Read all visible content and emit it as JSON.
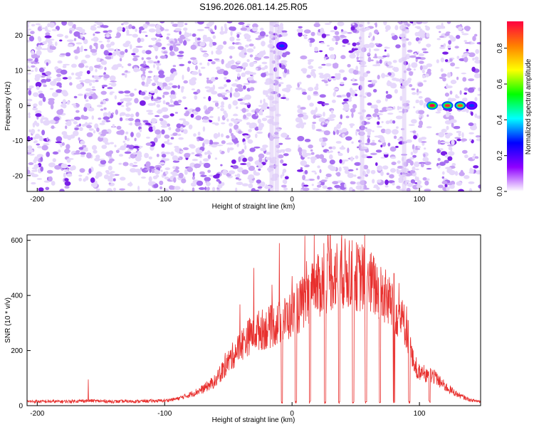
{
  "figure": {
    "title": "S196.2026.081.14.25.R05"
  },
  "chart_data": [
    {
      "type": "heatmap",
      "title": "",
      "xlabel": "Height of straight line (km)",
      "ylabel": "Frequency (Hz)",
      "xlim": [
        -208,
        148
      ],
      "ylim": [
        -24.5,
        24
      ],
      "xticks": [
        -200,
        -100,
        0,
        100
      ],
      "yticks": [
        -20,
        -10,
        0,
        10,
        20
      ],
      "colorbar": {
        "label": "Normalized spectral amplitude",
        "range": [
          0,
          0.95
        ],
        "ticks": [
          0.0,
          0.2,
          0.4,
          0.6,
          0.8
        ],
        "tick_labels": [
          "0.0",
          "0.2",
          "0.4",
          "0.6",
          "0.8"
        ],
        "colormap": [
          "#ffffff",
          "#8f00ff",
          "#0000ff",
          "#00ffff",
          "#00ff00",
          "#ffff00",
          "#ff8000",
          "#ff0040"
        ]
      },
      "noise_level": 0.12,
      "blank_bands": [
        [
          -2,
          5
        ],
        [
          108,
          114
        ],
        [
          127,
          129
        ],
        [
          138,
          140
        ]
      ],
      "features": [
        {
          "x": -8,
          "y": 17,
          "amplitude": 0.3
        },
        {
          "x": 110,
          "y": 0,
          "amplitude": 0.95
        },
        {
          "x": 122,
          "y": 0,
          "amplitude": 0.9
        },
        {
          "x": 132,
          "y": 0,
          "amplitude": 0.85
        },
        {
          "x": 141,
          "y": 0,
          "amplitude": 0.3
        }
      ]
    },
    {
      "type": "line",
      "title": "",
      "xlabel": "Height of straight line (km)",
      "ylabel": "SNR (10 * v/v)",
      "xlim": [
        -208,
        148
      ],
      "ylim": [
        0,
        620
      ],
      "xticks": [
        -200,
        -100,
        0,
        100
      ],
      "yticks": [
        0,
        200,
        400,
        600
      ],
      "grid": false,
      "series": [
        {
          "color": "#e8302e",
          "x": [
            -208,
            -180,
            -160,
            -140,
            -120,
            -100,
            -90,
            -80,
            -70,
            -60,
            -50,
            -40,
            -30,
            -20,
            -10,
            0,
            10,
            20,
            30,
            40,
            50,
            60,
            70,
            80,
            90,
            95,
            100,
            110,
            120,
            130,
            140,
            148
          ],
          "y": [
            15,
            15,
            18,
            15,
            16,
            18,
            25,
            40,
            60,
            90,
            160,
            220,
            270,
            280,
            300,
            330,
            380,
            430,
            470,
            480,
            470,
            450,
            410,
            360,
            280,
            160,
            120,
            110,
            70,
            40,
            20,
            15
          ],
          "spikes": [
            {
              "x": -160,
              "y": 95
            },
            {
              "x": -30,
              "y": 500
            },
            {
              "x": -10,
              "y": 590
            },
            {
              "x": 0,
              "y": 470
            },
            {
              "x": 25,
              "y": 590
            },
            {
              "x": 30,
              "y": 620
            },
            {
              "x": 45,
              "y": 600
            },
            {
              "x": 55,
              "y": 585
            },
            {
              "x": 80,
              "y": 480
            },
            {
              "x": 90,
              "y": 360
            }
          ],
          "dropouts": [
            -8,
            3,
            14,
            26,
            37,
            48,
            58,
            69,
            80,
            92,
            108
          ]
        }
      ]
    }
  ]
}
